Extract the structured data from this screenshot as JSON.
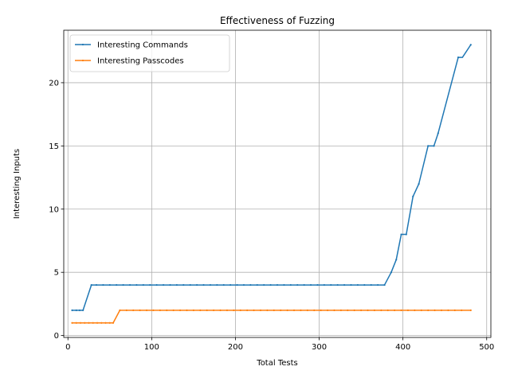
{
  "chart_data": {
    "type": "line",
    "title": "Effectiveness of Fuzzing",
    "xlabel": "Total Tests",
    "ylabel": "Interesting Inputs",
    "xlim": [
      -5,
      505
    ],
    "ylim": [
      -0.15,
      24.15
    ],
    "xticks": [
      0,
      100,
      200,
      300,
      400,
      500
    ],
    "yticks": [
      0,
      5,
      10,
      15,
      20
    ],
    "grid": true,
    "legend": "upper-left",
    "series": [
      {
        "name": "Interesting Commands",
        "color": "#1f77b4",
        "points": [
          [
            5,
            2
          ],
          [
            10,
            2
          ],
          [
            18,
            2
          ],
          [
            28,
            4
          ],
          [
            40,
            4
          ],
          [
            60,
            4
          ],
          [
            100,
            4
          ],
          [
            150,
            4
          ],
          [
            200,
            4
          ],
          [
            250,
            4
          ],
          [
            300,
            4
          ],
          [
            350,
            4
          ],
          [
            378,
            4
          ],
          [
            386,
            5
          ],
          [
            392,
            6
          ],
          [
            398,
            8
          ],
          [
            404,
            8
          ],
          [
            412,
            11
          ],
          [
            419,
            12
          ],
          [
            430,
            15
          ],
          [
            437,
            15
          ],
          [
            442,
            16
          ],
          [
            450,
            18
          ],
          [
            458,
            20
          ],
          [
            466,
            22
          ],
          [
            471,
            22
          ],
          [
            481,
            23
          ]
        ],
        "marker_xs": [
          5,
          10,
          14,
          18,
          28,
          34,
          42,
          50,
          58,
          66,
          74,
          82,
          90,
          98,
          106,
          114,
          122,
          130,
          138,
          146,
          154,
          162,
          170,
          178,
          186,
          194,
          202,
          210,
          218,
          226,
          234,
          242,
          250,
          258,
          266,
          274,
          282,
          290,
          298,
          306,
          314,
          322,
          330,
          338,
          346,
          354,
          362,
          370,
          378,
          386,
          392,
          398,
          404,
          412,
          419,
          430,
          437,
          442,
          466,
          481
        ]
      },
      {
        "name": "Interesting Passcodes",
        "color": "#ff7f0e",
        "points": [
          [
            5,
            1
          ],
          [
            54,
            1
          ],
          [
            62,
            2
          ],
          [
            481,
            2
          ]
        ],
        "marker_xs": [
          5,
          10,
          15,
          20,
          25,
          30,
          35,
          40,
          45,
          50,
          54,
          62,
          70,
          78,
          86,
          94,
          102,
          110,
          118,
          126,
          134,
          142,
          150,
          158,
          166,
          174,
          182,
          190,
          198,
          206,
          214,
          222,
          230,
          238,
          246,
          254,
          262,
          270,
          278,
          286,
          294,
          302,
          310,
          318,
          326,
          334,
          342,
          350,
          358,
          366,
          374,
          382,
          390,
          398,
          406,
          414,
          422,
          430,
          438,
          446,
          454,
          462,
          470,
          481
        ]
      }
    ]
  }
}
